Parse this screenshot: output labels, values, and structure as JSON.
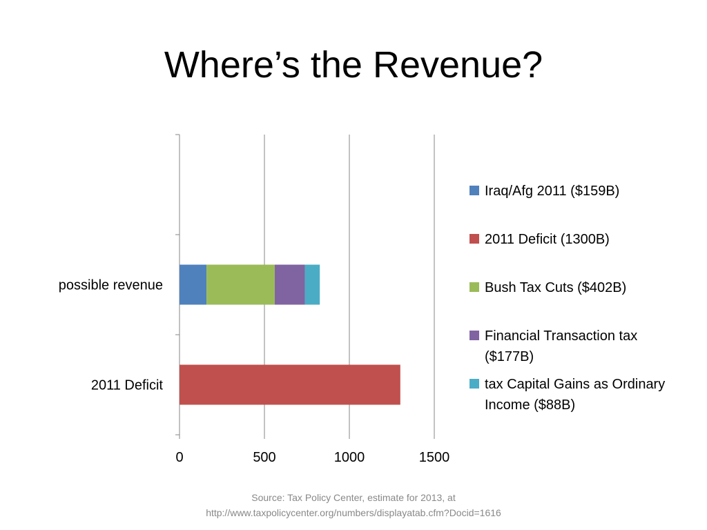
{
  "slide": {
    "title": "Where’s the Revenue?",
    "source_line1": "Source:  Tax Policy Center, estimate for 2013, at",
    "source_line2": "http://www.taxpolicycenter.org/numbers/displayatab.cfm?Docid=1616"
  },
  "chart_data": {
    "type": "bar",
    "orientation": "horizontal",
    "stacked": true,
    "categories": [
      "2011 Deficit",
      "possible revenue",
      ""
    ],
    "series": [
      {
        "name": "Iraq/Afg 2011 ($159B)",
        "color": "#4f81bd",
        "values": [
          0,
          159,
          0
        ]
      },
      {
        "name": "2011 Deficit (1300B)",
        "color": "#c0504d",
        "values": [
          1300,
          0,
          0
        ]
      },
      {
        "name": "Bush Tax Cuts ($402B)",
        "color": "#9bbb59",
        "values": [
          0,
          402,
          0
        ]
      },
      {
        "name": "Financial Transaction tax ($177B)",
        "color": "#8064a2",
        "values": [
          0,
          177,
          0
        ]
      },
      {
        "name": "tax Capital Gains as Ordinary Income ($88B)",
        "color": "#4bacc6",
        "values": [
          0,
          88,
          0
        ]
      }
    ],
    "xlim": [
      0,
      1500
    ],
    "xticks": [
      "0",
      "500",
      "1000",
      "1500"
    ],
    "grid": "vertical",
    "legend_position": "right",
    "title": "",
    "xlabel": "",
    "ylabel": ""
  }
}
